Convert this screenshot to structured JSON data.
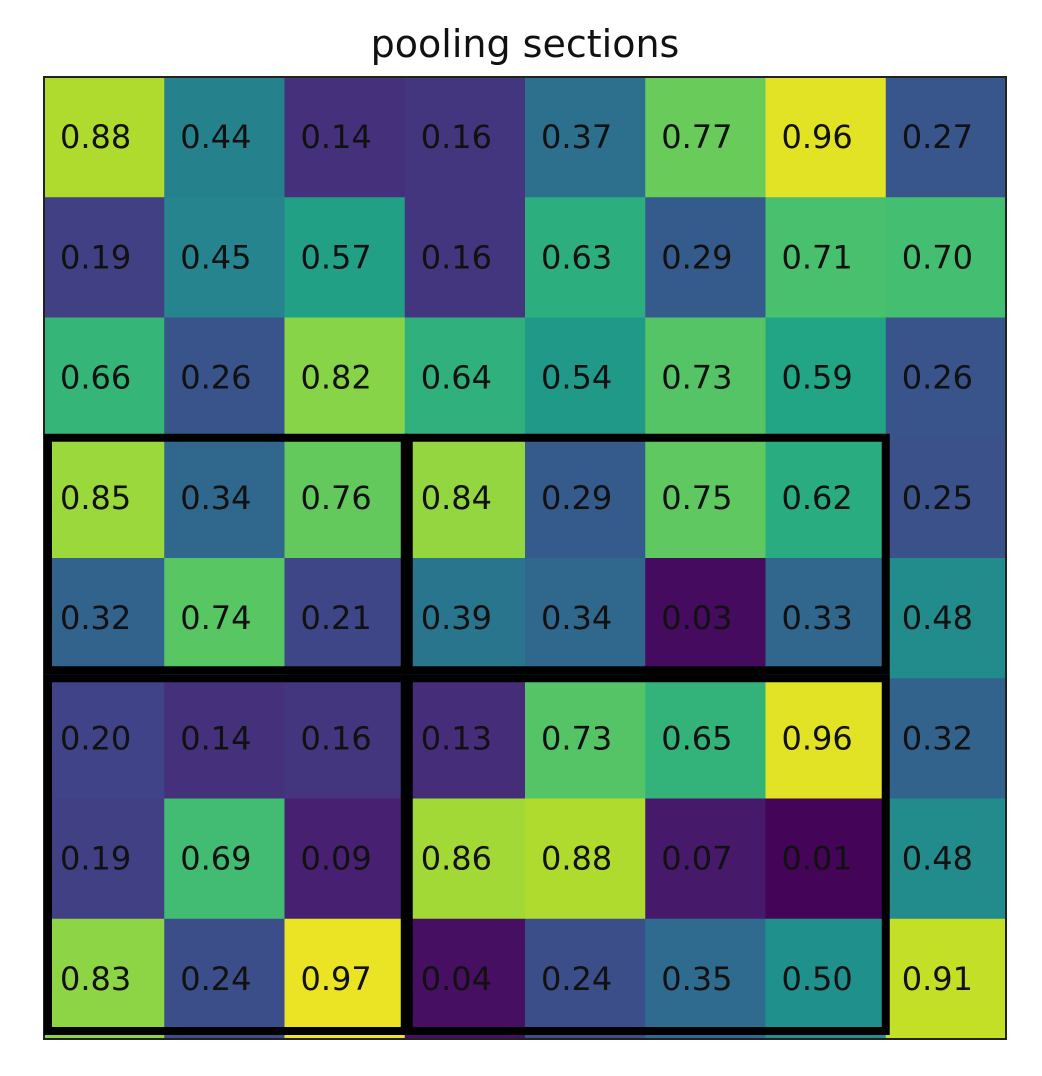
{
  "chart_data": {
    "type": "heatmap",
    "title": "pooling sections",
    "colormap": "viridis",
    "value_range": [
      0,
      1
    ],
    "rows": 8,
    "cols": 8,
    "values": [
      [
        0.88,
        0.44,
        0.14,
        0.16,
        0.37,
        0.77,
        0.96,
        0.27
      ],
      [
        0.19,
        0.45,
        0.57,
        0.16,
        0.63,
        0.29,
        0.71,
        0.7
      ],
      [
        0.66,
        0.26,
        0.82,
        0.64,
        0.54,
        0.73,
        0.59,
        0.26
      ],
      [
        0.85,
        0.34,
        0.76,
        0.84,
        0.29,
        0.75,
        0.62,
        0.25
      ],
      [
        0.32,
        0.74,
        0.21,
        0.39,
        0.34,
        0.03,
        0.33,
        0.48
      ],
      [
        0.2,
        0.14,
        0.16,
        0.13,
        0.73,
        0.65,
        0.96,
        0.32
      ],
      [
        0.19,
        0.69,
        0.09,
        0.86,
        0.88,
        0.07,
        0.01,
        0.48
      ],
      [
        0.83,
        0.24,
        0.97,
        0.04,
        0.24,
        0.35,
        0.5,
        0.91
      ]
    ],
    "labels": [
      [
        "0.88",
        "0.44",
        "0.14",
        "0.16",
        "0.37",
        "0.77",
        "0.96",
        "0.27"
      ],
      [
        "0.19",
        "0.45",
        "0.57",
        "0.16",
        "0.63",
        "0.29",
        "0.71",
        "0.70"
      ],
      [
        "0.66",
        "0.26",
        "0.82",
        "0.64",
        "0.54",
        "0.73",
        "0.59",
        "0.26"
      ],
      [
        "0.85",
        "0.34",
        "0.76",
        "0.84",
        "0.29",
        "0.75",
        "0.62",
        "0.25"
      ],
      [
        "0.32",
        "0.74",
        "0.21",
        "0.39",
        "0.34",
        "0.03",
        "0.33",
        "0.48"
      ],
      [
        "0.20",
        "0.14",
        "0.16",
        "0.13",
        "0.73",
        "0.65",
        "0.96",
        "0.32"
      ],
      [
        "0.19",
        "0.69",
        "0.09",
        "0.86",
        "0.88",
        "0.07",
        "0.01",
        "0.48"
      ],
      [
        "0.83",
        "0.24",
        "0.97",
        "0.04",
        "0.24",
        "0.35",
        "0.50",
        "0.91"
      ]
    ],
    "pooling_sections": [
      {
        "row_start": 3,
        "row_end": 5,
        "col_start": 0,
        "col_end": 3
      },
      {
        "row_start": 3,
        "row_end": 5,
        "col_start": 3,
        "col_end": 7
      },
      {
        "row_start": 5,
        "row_end": 8,
        "col_start": 0,
        "col_end": 3
      },
      {
        "row_start": 5,
        "row_end": 8,
        "col_start": 3,
        "col_end": 7
      }
    ],
    "section_border_color": "#000000",
    "frame_color": "#222222",
    "grid": false,
    "xlabel": "",
    "ylabel": ""
  }
}
